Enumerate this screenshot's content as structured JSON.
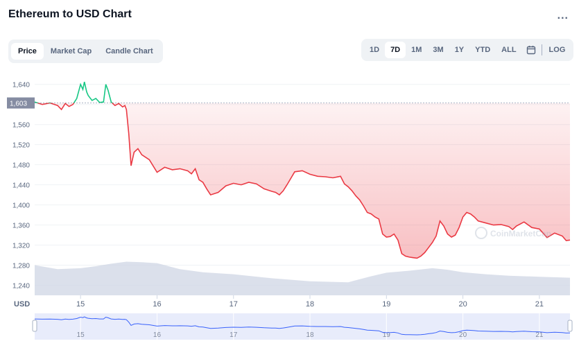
{
  "header": {
    "title": "Ethereum to USD Chart",
    "more_label": "..."
  },
  "chart_tabs": [
    {
      "label": "Price",
      "active": true
    },
    {
      "label": "Market Cap",
      "active": false
    },
    {
      "label": "Candle Chart",
      "active": false
    }
  ],
  "range_buttons": [
    "1D",
    "7D",
    "1M",
    "3M",
    "1Y",
    "YTD",
    "ALL"
  ],
  "active_range": "7D",
  "log_label": "LOG",
  "icons": {
    "calendar": "calendar-icon",
    "more": "more-icon",
    "watermark": "coinmarketcap-logo"
  },
  "watermark_text": "CoinMarketCap",
  "colors": {
    "up": "#16c784",
    "down": "#ea3943",
    "volume": "#cfd6e4",
    "navigator_line": "#3861fb",
    "navigator_fill": "#e8ecfb"
  },
  "chart_data": {
    "type": "line",
    "ylabel": "",
    "xlabel": "",
    "currency_label": "USD",
    "ylim": [
      1220,
      1670
    ],
    "y_ticks": [
      1240,
      1280,
      1320,
      1360,
      1400,
      1440,
      1480,
      1520,
      1560,
      1600,
      1640
    ],
    "y_tick_labels": [
      "1,240",
      "1,280",
      "1,320",
      "1,360",
      "1,400",
      "1,440",
      "1,480",
      "1,520",
      "1,560",
      "1,600",
      "1,640"
    ],
    "reference_price": 1603,
    "reference_label": "1,603",
    "x_ticks": [
      15,
      16,
      17,
      18,
      19,
      20,
      21
    ],
    "x_tick_labels": [
      "15",
      "16",
      "17",
      "18",
      "19",
      "20",
      "21"
    ],
    "xlim": [
      14.4,
      21.4
    ],
    "series": [
      {
        "values_x": [
          14.4,
          14.5,
          14.6,
          14.7,
          14.75,
          14.8,
          14.85,
          14.9,
          14.95,
          15.0,
          15.03,
          15.05,
          15.08,
          15.1,
          15.15,
          15.2,
          15.25,
          15.3,
          15.33,
          15.36,
          15.4,
          15.45,
          15.5,
          15.55,
          15.58,
          15.6,
          15.63,
          15.66,
          15.7,
          15.75,
          15.8,
          15.9,
          16.0,
          16.05,
          16.1,
          16.2,
          16.3,
          16.4,
          16.45,
          16.5,
          16.55,
          16.6,
          16.65,
          16.7,
          16.8,
          16.9,
          17.0,
          17.1,
          17.2,
          17.3,
          17.4,
          17.5,
          17.55,
          17.6,
          17.65,
          17.7,
          17.8,
          17.9,
          18.0,
          18.1,
          18.2,
          18.3,
          18.4,
          18.45,
          18.5,
          18.55,
          18.6,
          18.65,
          18.7,
          18.75,
          18.8,
          18.85,
          18.9,
          18.95,
          19.0,
          19.05,
          19.1,
          19.15,
          19.2,
          19.25,
          19.3,
          19.35,
          19.4,
          19.45,
          19.5,
          19.55,
          19.6,
          19.65,
          19.7,
          19.75,
          19.8,
          19.85,
          19.9,
          19.95,
          20.0,
          20.05,
          20.1,
          20.15,
          20.2,
          20.3,
          20.4,
          20.5,
          20.6,
          20.65,
          20.7,
          20.8,
          20.9,
          21.0,
          21.1,
          21.2,
          21.3,
          21.35,
          21.4
        ],
        "values_y": [
          1605,
          1600,
          1603,
          1598,
          1590,
          1602,
          1596,
          1600,
          1612,
          1640,
          1630,
          1645,
          1625,
          1618,
          1608,
          1612,
          1604,
          1605,
          1640,
          1628,
          1605,
          1598,
          1602,
          1595,
          1598,
          1590,
          1542,
          1478,
          1505,
          1512,
          1500,
          1490,
          1465,
          1470,
          1475,
          1470,
          1472,
          1468,
          1462,
          1472,
          1450,
          1445,
          1432,
          1420,
          1425,
          1438,
          1443,
          1440,
          1445,
          1442,
          1432,
          1427,
          1425,
          1420,
          1428,
          1440,
          1466,
          1468,
          1461,
          1457,
          1456,
          1454,
          1457,
          1442,
          1436,
          1428,
          1418,
          1410,
          1398,
          1385,
          1382,
          1376,
          1372,
          1342,
          1336,
          1337,
          1342,
          1330,
          1303,
          1298,
          1296,
          1295,
          1294,
          1298,
          1305,
          1315,
          1325,
          1338,
          1368,
          1358,
          1342,
          1336,
          1340,
          1355,
          1376,
          1385,
          1382,
          1376,
          1368,
          1364,
          1360,
          1361,
          1357,
          1351,
          1358,
          1366,
          1355,
          1352,
          1335,
          1344,
          1338,
          1329,
          1330
        ]
      }
    ],
    "volume_series": {
      "values_x": [
        14.4,
        14.7,
        15.0,
        15.2,
        15.4,
        15.6,
        15.8,
        16.0,
        16.3,
        16.6,
        17.0,
        17.5,
        18.0,
        18.5,
        18.8,
        19.0,
        19.3,
        19.6,
        19.8,
        20.0,
        20.3,
        20.6,
        21.0,
        21.4
      ],
      "values_y": [
        1280,
        1272,
        1274,
        1278,
        1283,
        1287,
        1286,
        1284,
        1272,
        1266,
        1262,
        1254,
        1248,
        1246,
        1258,
        1265,
        1269,
        1274,
        1271,
        1266,
        1262,
        1259,
        1257,
        1255
      ]
    }
  }
}
